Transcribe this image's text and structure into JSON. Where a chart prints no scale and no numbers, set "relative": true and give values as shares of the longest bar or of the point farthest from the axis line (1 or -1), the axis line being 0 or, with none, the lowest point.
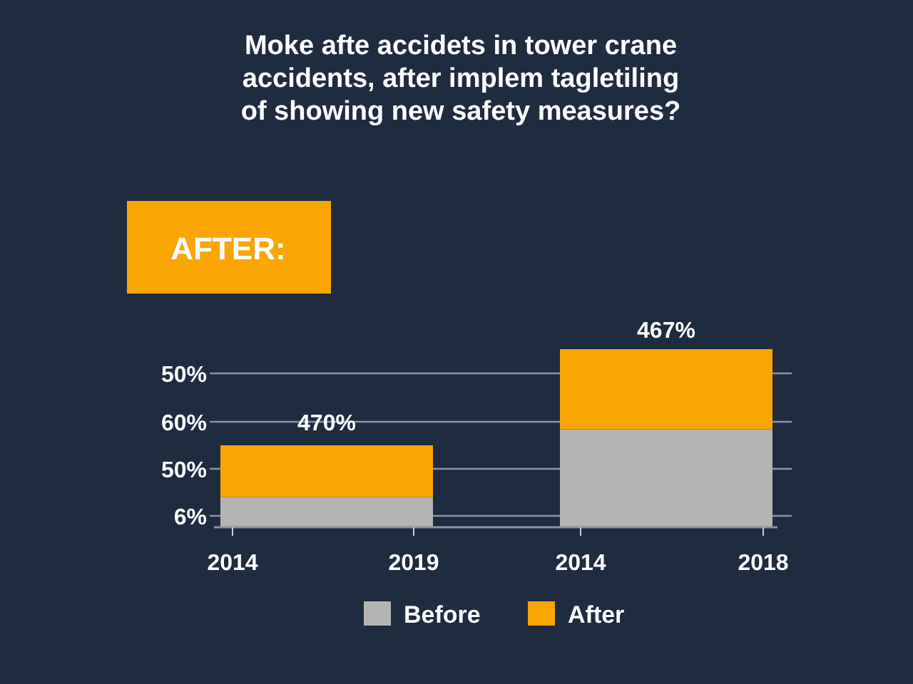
{
  "chart_data": {
    "type": "bar",
    "title": "Moke afte accidets in tower crane\naccidents, after implem tagletiling\nof showing new safety measures?",
    "categories": [
      null,
      null
    ],
    "relative": true,
    "stacked": true,
    "series": [
      {
        "name": "Before",
        "color": "#b4b4b4",
        "values": [
          0.17,
          0.55
        ]
      },
      {
        "name": "After",
        "color": "#f9a602",
        "values": [
          0.29,
          0.45
        ]
      }
    ],
    "annotations": [
      "AFTER:",
      "470%",
      "467%",
      "6%",
      "50%",
      "60%",
      "50%",
      "2014",
      "2019",
      "2014",
      "2018"
    ],
    "grid": "y",
    "legend": "bottom"
  }
}
